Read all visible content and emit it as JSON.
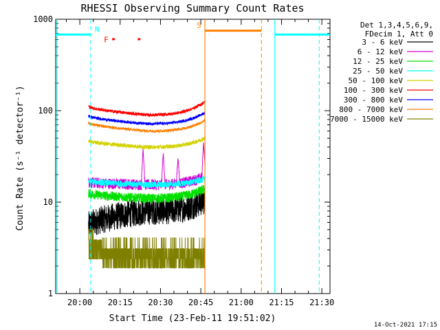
{
  "chart_data": {
    "type": "line",
    "title": "RHESSI Observing Summary Count Rates",
    "xlabel": "Start Time (23-Feb-11 19:51:02)",
    "ylabel": "Count Rate (s⁻¹ detector⁻¹)",
    "yscale": "log",
    "ylim": [
      1,
      1000
    ],
    "xlim_minutes_after_start": [
      0,
      102
    ],
    "y_ticks": [
      "1",
      "10",
      "100",
      "1000"
    ],
    "x_ticks": [
      {
        "label": "20:00",
        "minute": 8.97
      },
      {
        "label": "20:15",
        "minute": 23.97
      },
      {
        "label": "20:30",
        "minute": 38.97
      },
      {
        "label": "20:45",
        "minute": 53.97
      },
      {
        "label": "21:00",
        "minute": 68.97
      },
      {
        "label": "21:15",
        "minute": 83.97
      },
      {
        "label": "21:30",
        "minute": 98.97
      }
    ],
    "legend_header": [
      "Det 1,3,4,5,6,9,",
      "FDecim 1, Att 0"
    ],
    "legend_position": "right",
    "data_interval_minutes": [
      12.2,
      55.5
    ],
    "series": [
      {
        "name": "3 - 6 keV",
        "color": "#000000",
        "level_start": 5.5,
        "level_mid": 8.0,
        "level_end": 10.5,
        "noise": 0.35
      },
      {
        "name": "6 - 12 keV",
        "color": "#d300d3",
        "level_start": 16.5,
        "level_mid": 15.5,
        "level_end": 19.0,
        "noise": 0.14,
        "spikes": [
          {
            "minute": 32.5,
            "value": 38
          },
          {
            "minute": 40.0,
            "value": 34
          },
          {
            "minute": 45.5,
            "value": 30
          },
          {
            "minute": 55.0,
            "value": 45
          }
        ]
      },
      {
        "name": "12 - 25 keV",
        "color": "#00e000",
        "level_start": 12.5,
        "level_mid": 11.0,
        "level_end": 14.0,
        "noise": 0.12
      },
      {
        "name": "25 - 50 keV",
        "color": "#00ffff",
        "level_start": 17.0,
        "level_mid": 15.5,
        "level_end": 18.0,
        "noise": 0.08
      },
      {
        "name": "50 - 100 keV",
        "color": "#d2d200",
        "level_start": 47.0,
        "level_mid": 40.0,
        "level_end": 50.0,
        "noise": 0.05
      },
      {
        "name": "100 - 300 keV",
        "color": "#ff0000",
        "level_start": 112.0,
        "level_mid": 90.0,
        "level_end": 125.0,
        "noise": 0.04
      },
      {
        "name": "300 - 800 keV",
        "color": "#0000ff",
        "level_start": 88.0,
        "level_mid": 72.0,
        "level_end": 95.0,
        "noise": 0.035
      },
      {
        "name": "800 - 7000 keV",
        "color": "#ff8000",
        "level_start": 74.0,
        "level_mid": 60.0,
        "level_end": 78.0,
        "noise": 0.035
      },
      {
        "name": "7000 - 15000 keV",
        "color": "#808000",
        "level_start": 3.5,
        "level_mid": 2.4,
        "level_end": 3.2,
        "noise": 0.4
      }
    ],
    "flags": [
      {
        "label": "N",
        "color": "#00ffff",
        "kind": "night",
        "intervals": [
          [
            0,
            13.0
          ],
          [
            57.2,
            57.3
          ],
          [
            81.5,
            102
          ]
        ],
        "level": 680
      },
      {
        "label": "S",
        "color": "#ff8000",
        "kind": "saa",
        "intervals": [
          [
            55.5,
            76.5
          ]
        ],
        "level": 750
      },
      {
        "label": "F",
        "color": "#ff0000",
        "kind": "flare",
        "markers": [
          21.5,
          31.0
        ],
        "level": 600
      }
    ],
    "vertical_lines": [
      {
        "minute": 0.5,
        "color": "#00ffff",
        "style": "solid"
      },
      {
        "minute": 13.0,
        "color": "#00ffff",
        "style": "dashed"
      },
      {
        "minute": 55.5,
        "color": "#ff8000",
        "style": "solid"
      },
      {
        "minute": 76.5,
        "color": "#ff8000",
        "style": "dashed"
      },
      {
        "minute": 81.5,
        "color": "#00ffff",
        "style": "solid"
      },
      {
        "minute": 98.0,
        "color": "#00ffff",
        "style": "dashed"
      }
    ],
    "footer_date": "14-Oct-2021 17:15"
  }
}
